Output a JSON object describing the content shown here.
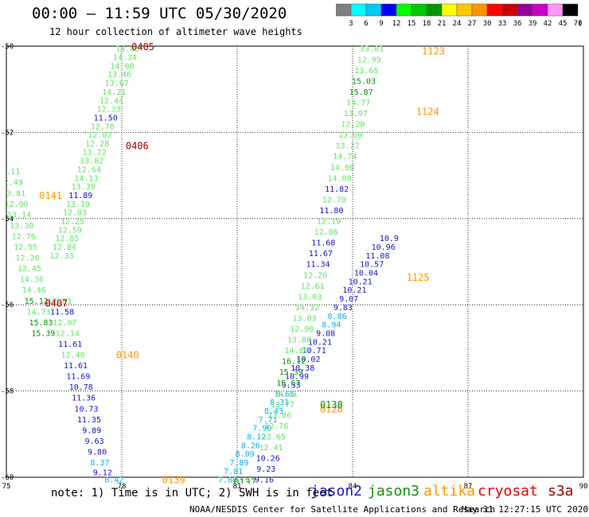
{
  "header": {
    "title": "00:00 – 11:59 UTC 05/30/2020",
    "subtitle": "12 hour collection of altimeter wave heights"
  },
  "colorbar": {
    "colors": [
      "#808080",
      "#00ffff",
      "#00c8ff",
      "#0000ff",
      "#00ff00",
      "#00c800",
      "#009600",
      "#ffff00",
      "#ffc800",
      "#ff9600",
      "#ff0000",
      "#c80000",
      "#960096",
      "#c800c8",
      "#ff96ff",
      "#000000"
    ],
    "ticks": [
      "3",
      "6",
      "9",
      "12",
      "15",
      "18",
      "21",
      "24",
      "27",
      "30",
      "33",
      "36",
      "39",
      "42",
      "45",
      "70",
      "(ft)"
    ]
  },
  "footer": {
    "note": "note: 1) Time is in UTC; 2) SWH is in feet",
    "satellites": [
      {
        "name": "jason2",
        "color": "#1414d2"
      },
      {
        "name": "jason3",
        "color": "#109010"
      },
      {
        "name": "altika",
        "color": "#ff9600"
      },
      {
        "name": "cryosat",
        "color": "#e60000"
      },
      {
        "name": "s3a",
        "color": "#a00000"
      }
    ],
    "credit": "NOAA/NESDIS Center for Satellite Applications and Research",
    "date": "May 31 12:27:15 UTC 2020"
  },
  "chart_data": {
    "type": "scatter",
    "title": "00:00 – 11:59 UTC 05/30/2020",
    "xlim": [
      75,
      90
    ],
    "ylim": [
      -60,
      -50
    ],
    "x_ticks": [
      "75",
      "78",
      "81",
      "84",
      "87",
      "90"
    ],
    "y_ticks": [
      "-50",
      "-52",
      "-54",
      "-56",
      "-58",
      "-60"
    ],
    "grid": true,
    "wave_heights": [
      {
        "lon": 78.15,
        "lat": -50.05,
        "v": "14.85",
        "c": "#5fe65f"
      },
      {
        "lon": 78.08,
        "lat": -50.25,
        "v": "14.34",
        "c": "#5fe65f"
      },
      {
        "lon": 78.01,
        "lat": -50.45,
        "v": "14.08",
        "c": "#5fe65f"
      },
      {
        "lon": 77.94,
        "lat": -50.65,
        "v": "13.46",
        "c": "#5fe65f"
      },
      {
        "lon": 77.87,
        "lat": -50.85,
        "v": "13.67",
        "c": "#5fe65f"
      },
      {
        "lon": 77.8,
        "lat": -51.05,
        "v": "14.21",
        "c": "#5fe65f"
      },
      {
        "lon": 77.73,
        "lat": -51.25,
        "v": "12.44",
        "c": "#5fe65f"
      },
      {
        "lon": 77.66,
        "lat": -51.45,
        "v": "12.33",
        "c": "#5fe65f"
      },
      {
        "lon": 77.58,
        "lat": -51.65,
        "v": "11.50",
        "c": "#1414d2"
      },
      {
        "lon": 77.5,
        "lat": -51.85,
        "v": "12.78",
        "c": "#5fe65f"
      },
      {
        "lon": 77.43,
        "lat": -52.05,
        "v": "12.02",
        "c": "#5fe65f"
      },
      {
        "lon": 77.36,
        "lat": -52.25,
        "v": "12.28",
        "c": "#5fe65f"
      },
      {
        "lon": 77.29,
        "lat": -52.45,
        "v": "13.72",
        "c": "#5fe65f"
      },
      {
        "lon": 77.22,
        "lat": -52.65,
        "v": "13.82",
        "c": "#5fe65f"
      },
      {
        "lon": 77.15,
        "lat": -52.85,
        "v": "12.64",
        "c": "#5fe65f"
      },
      {
        "lon": 77.08,
        "lat": -53.05,
        "v": "14.13",
        "c": "#5fe65f"
      },
      {
        "lon": 77.0,
        "lat": -53.25,
        "v": "13.39",
        "c": "#5fe65f"
      },
      {
        "lon": 76.93,
        "lat": -53.45,
        "v": "11.89",
        "c": "#1414d2"
      },
      {
        "lon": 76.86,
        "lat": -53.65,
        "v": "13.19",
        "c": "#5fe65f"
      },
      {
        "lon": 76.78,
        "lat": -53.85,
        "v": "12.83",
        "c": "#5fe65f"
      },
      {
        "lon": 76.72,
        "lat": -54.05,
        "v": "12.25",
        "c": "#5fe65f"
      },
      {
        "lon": 76.65,
        "lat": -54.25,
        "v": "12.59",
        "c": "#5fe65f"
      },
      {
        "lon": 76.58,
        "lat": -54.45,
        "v": "12.85",
        "c": "#5fe65f"
      },
      {
        "lon": 76.51,
        "lat": -54.65,
        "v": "12.84",
        "c": "#5fe65f"
      },
      {
        "lon": 76.44,
        "lat": -54.85,
        "v": "12.33",
        "c": "#5fe65f"
      },
      {
        "lon": 75.05,
        "lat": -52.9,
        "v": "12.11",
        "c": "#5fe65f"
      },
      {
        "lon": 75.12,
        "lat": -53.15,
        "v": "12.49",
        "c": "#5fe65f"
      },
      {
        "lon": 75.19,
        "lat": -53.4,
        "v": "13.81",
        "c": "#5fe65f"
      },
      {
        "lon": 75.26,
        "lat": -53.65,
        "v": "12.90",
        "c": "#5fe65f"
      },
      {
        "lon": 75.33,
        "lat": -53.9,
        "v": "13.14",
        "c": "#5fe65f"
      },
      {
        "lon": 75.4,
        "lat": -54.15,
        "v": "13.30",
        "c": "#5fe65f"
      },
      {
        "lon": 75.45,
        "lat": -54.4,
        "v": "12.76",
        "c": "#5fe65f"
      },
      {
        "lon": 75.5,
        "lat": -54.65,
        "v": "12.55",
        "c": "#5fe65f"
      },
      {
        "lon": 75.55,
        "lat": -54.9,
        "v": "12.28",
        "c": "#5fe65f"
      },
      {
        "lon": 75.6,
        "lat": -55.15,
        "v": "12.45",
        "c": "#5fe65f"
      },
      {
        "lon": 75.66,
        "lat": -55.4,
        "v": "14.36",
        "c": "#5fe65f"
      },
      {
        "lon": 75.72,
        "lat": -55.65,
        "v": "14.46",
        "c": "#5fe65f"
      },
      {
        "lon": 75.78,
        "lat": -55.9,
        "v": "15.12",
        "c": "#009600"
      },
      {
        "lon": 75.84,
        "lat": -56.15,
        "v": "14.73",
        "c": "#5fe65f"
      },
      {
        "lon": 75.9,
        "lat": -56.4,
        "v": "15.83",
        "c": "#009600"
      },
      {
        "lon": 75.96,
        "lat": -56.65,
        "v": "15.39",
        "c": "#009600"
      },
      {
        "lon": 76.38,
        "lat": -55.9,
        "v": "12.83",
        "c": "#5fe65f"
      },
      {
        "lon": 76.45,
        "lat": -56.15,
        "v": "11.58",
        "c": "#1414d2"
      },
      {
        "lon": 76.52,
        "lat": -56.4,
        "v": "12.07",
        "c": "#5fe65f"
      },
      {
        "lon": 76.59,
        "lat": -56.65,
        "v": "12.14",
        "c": "#5fe65f"
      },
      {
        "lon": 76.66,
        "lat": -56.9,
        "v": "11.61",
        "c": "#1414d2"
      },
      {
        "lon": 76.73,
        "lat": -57.15,
        "v": "12.40",
        "c": "#5fe65f"
      },
      {
        "lon": 76.8,
        "lat": -57.4,
        "v": "11.61",
        "c": "#1414d2"
      },
      {
        "lon": 76.87,
        "lat": -57.65,
        "v": "11.69",
        "c": "#1414d2"
      },
      {
        "lon": 76.94,
        "lat": -57.9,
        "v": "10.78",
        "c": "#1414d2"
      },
      {
        "lon": 77.01,
        "lat": -58.15,
        "v": "11.36",
        "c": "#1414d2"
      },
      {
        "lon": 77.08,
        "lat": -58.4,
        "v": "10.73",
        "c": "#1414d2"
      },
      {
        "lon": 77.15,
        "lat": -58.65,
        "v": "11.35",
        "c": "#1414d2"
      },
      {
        "lon": 77.22,
        "lat": -58.9,
        "v": "9.89",
        "c": "#1414d2"
      },
      {
        "lon": 77.29,
        "lat": -59.15,
        "v": "9.63",
        "c": "#1414d2"
      },
      {
        "lon": 77.36,
        "lat": -59.4,
        "v": "9.80",
        "c": "#1414d2"
      },
      {
        "lon": 77.43,
        "lat": -59.65,
        "v": "8.37",
        "c": "#00b4ff"
      },
      {
        "lon": 77.5,
        "lat": -59.88,
        "v": "9.12",
        "c": "#1414d2"
      },
      {
        "lon": 77.8,
        "lat": -60.05,
        "v": "8.42",
        "c": "#00b4ff"
      },
      {
        "lon": 80.75,
        "lat": -60.05,
        "v": "7.80",
        "c": "#00b4ff"
      },
      {
        "lon": 80.9,
        "lat": -59.85,
        "v": "7.81",
        "c": "#00b4ff"
      },
      {
        "lon": 81.05,
        "lat": -59.65,
        "v": "7.89",
        "c": "#00b4ff"
      },
      {
        "lon": 81.2,
        "lat": -59.45,
        "v": "8.09",
        "c": "#00b4ff"
      },
      {
        "lon": 81.35,
        "lat": -59.25,
        "v": "8.26",
        "c": "#00b4ff"
      },
      {
        "lon": 81.5,
        "lat": -59.05,
        "v": "8.12",
        "c": "#00b4ff"
      },
      {
        "lon": 81.65,
        "lat": -58.85,
        "v": "7.96",
        "c": "#00b4ff"
      },
      {
        "lon": 81.8,
        "lat": -58.65,
        "v": "7.71",
        "c": "#00b4ff"
      },
      {
        "lon": 81.95,
        "lat": -58.45,
        "v": "8.43",
        "c": "#00b4ff"
      },
      {
        "lon": 82.1,
        "lat": -58.25,
        "v": "8.31",
        "c": "#00b4ff"
      },
      {
        "lon": 82.25,
        "lat": -58.05,
        "v": "8.65",
        "c": "#00b4ff"
      },
      {
        "lon": 82.4,
        "lat": -57.85,
        "v": "9.33",
        "c": "#1414d2"
      },
      {
        "lon": 82.55,
        "lat": -57.65,
        "v": "10.99",
        "c": "#1414d2"
      },
      {
        "lon": 82.7,
        "lat": -57.45,
        "v": "10.38",
        "c": "#1414d2"
      },
      {
        "lon": 82.85,
        "lat": -57.25,
        "v": "10.02",
        "c": "#1414d2"
      },
      {
        "lon": 83.0,
        "lat": -57.05,
        "v": "10.71",
        "c": "#1414d2"
      },
      {
        "lon": 83.15,
        "lat": -56.85,
        "v": "10.21",
        "c": "#1414d2"
      },
      {
        "lon": 83.3,
        "lat": -56.65,
        "v": "9.08",
        "c": "#1414d2"
      },
      {
        "lon": 83.45,
        "lat": -56.45,
        "v": "8.94",
        "c": "#00b4ff"
      },
      {
        "lon": 83.6,
        "lat": -56.25,
        "v": "8.86",
        "c": "#00b4ff"
      },
      {
        "lon": 83.75,
        "lat": -56.05,
        "v": "9.83",
        "c": "#1414d2"
      },
      {
        "lon": 83.9,
        "lat": -55.85,
        "v": "9.07",
        "c": "#1414d2"
      },
      {
        "lon": 84.05,
        "lat": -55.65,
        "v": "10.21",
        "c": "#1414d2"
      },
      {
        "lon": 84.2,
        "lat": -55.45,
        "v": "10.21",
        "c": "#1414d2"
      },
      {
        "lon": 84.35,
        "lat": -55.25,
        "v": "10.04",
        "c": "#1414d2"
      },
      {
        "lon": 84.5,
        "lat": -55.05,
        "v": "10.57",
        "c": "#1414d2"
      },
      {
        "lon": 84.65,
        "lat": -54.85,
        "v": "11.08",
        "c": "#1414d2"
      },
      {
        "lon": 84.8,
        "lat": -54.65,
        "v": "10.96",
        "c": "#1414d2"
      },
      {
        "lon": 84.95,
        "lat": -54.45,
        "v": "10.9",
        "c": "#1414d2"
      },
      {
        "lon": 81.7,
        "lat": -60.05,
        "v": "9.16",
        "c": "#1414d2"
      },
      {
        "lon": 81.75,
        "lat": -59.8,
        "v": "9.23",
        "c": "#1414d2"
      },
      {
        "lon": 81.8,
        "lat": -59.55,
        "v": "10.26",
        "c": "#1414d2"
      },
      {
        "lon": 81.88,
        "lat": -59.3,
        "v": "12.41",
        "c": "#5fe65f"
      },
      {
        "lon": 81.95,
        "lat": -59.05,
        "v": "12.65",
        "c": "#5fe65f"
      },
      {
        "lon": 82.02,
        "lat": -58.8,
        "v": "12.76",
        "c": "#5fe65f"
      },
      {
        "lon": 82.1,
        "lat": -58.55,
        "v": "13.06",
        "c": "#5fe65f"
      },
      {
        "lon": 82.18,
        "lat": -58.3,
        "v": "13.77",
        "c": "#5fe65f"
      },
      {
        "lon": 82.26,
        "lat": -58.05,
        "v": "14.31",
        "c": "#5fe65f"
      },
      {
        "lon": 82.33,
        "lat": -57.8,
        "v": "15.67",
        "c": "#009600"
      },
      {
        "lon": 82.4,
        "lat": -57.55,
        "v": "15.39",
        "c": "#009600"
      },
      {
        "lon": 82.47,
        "lat": -57.3,
        "v": "16.12",
        "c": "#009600"
      },
      {
        "lon": 82.54,
        "lat": -57.05,
        "v": "14.89",
        "c": "#5fe65f"
      },
      {
        "lon": 82.61,
        "lat": -56.8,
        "v": "13.88",
        "c": "#5fe65f"
      },
      {
        "lon": 82.68,
        "lat": -56.55,
        "v": "12.90",
        "c": "#5fe65f"
      },
      {
        "lon": 82.75,
        "lat": -56.3,
        "v": "13.03",
        "c": "#5fe65f"
      },
      {
        "lon": 82.82,
        "lat": -56.05,
        "v": "14.32",
        "c": "#5fe65f"
      },
      {
        "lon": 82.89,
        "lat": -55.8,
        "v": "13.03",
        "c": "#5fe65f"
      },
      {
        "lon": 82.96,
        "lat": -55.55,
        "v": "12.61",
        "c": "#5fe65f"
      },
      {
        "lon": 83.03,
        "lat": -55.3,
        "v": "12.20",
        "c": "#5fe65f"
      },
      {
        "lon": 83.1,
        "lat": -55.05,
        "v": "11.34",
        "c": "#1414d2"
      },
      {
        "lon": 83.17,
        "lat": -54.8,
        "v": "11.67",
        "c": "#1414d2"
      },
      {
        "lon": 83.24,
        "lat": -54.55,
        "v": "11.68",
        "c": "#1414d2"
      },
      {
        "lon": 83.31,
        "lat": -54.3,
        "v": "12.06",
        "c": "#5fe65f"
      },
      {
        "lon": 83.38,
        "lat": -54.05,
        "v": "12.19",
        "c": "#5fe65f"
      },
      {
        "lon": 83.45,
        "lat": -53.8,
        "v": "11.80",
        "c": "#1414d2"
      },
      {
        "lon": 83.52,
        "lat": -53.55,
        "v": "12.70",
        "c": "#5fe65f"
      },
      {
        "lon": 83.59,
        "lat": -53.3,
        "v": "11.82",
        "c": "#1414d2"
      },
      {
        "lon": 83.66,
        "lat": -53.05,
        "v": "14.08",
        "c": "#5fe65f"
      },
      {
        "lon": 83.73,
        "lat": -52.8,
        "v": "14.06",
        "c": "#5fe65f"
      },
      {
        "lon": 83.8,
        "lat": -52.55,
        "v": "14.74",
        "c": "#5fe65f"
      },
      {
        "lon": 83.87,
        "lat": -52.3,
        "v": "13.27",
        "c": "#5fe65f"
      },
      {
        "lon": 83.94,
        "lat": -52.05,
        "v": "13.00",
        "c": "#5fe65f"
      },
      {
        "lon": 84.01,
        "lat": -51.8,
        "v": "12.20",
        "c": "#5fe65f"
      },
      {
        "lon": 84.08,
        "lat": -51.55,
        "v": "13.97",
        "c": "#5fe65f"
      },
      {
        "lon": 84.15,
        "lat": -51.3,
        "v": "14.77",
        "c": "#5fe65f"
      },
      {
        "lon": 84.22,
        "lat": -51.05,
        "v": "15.87",
        "c": "#009600"
      },
      {
        "lon": 84.29,
        "lat": -50.8,
        "v": "15.03",
        "c": "#009600"
      },
      {
        "lon": 84.36,
        "lat": -50.55,
        "v": "13.65",
        "c": "#5fe65f"
      },
      {
        "lon": 84.43,
        "lat": -50.3,
        "v": "12.99",
        "c": "#5fe65f"
      },
      {
        "lon": 84.5,
        "lat": -50.05,
        "v": "13.81",
        "c": "#5fe65f"
      }
    ],
    "time_labels": [
      {
        "lon": 78.55,
        "lat": -50.0,
        "t": "0405",
        "c": "#a00000"
      },
      {
        "lon": 78.4,
        "lat": -52.3,
        "t": "0406",
        "c": "#a00000"
      },
      {
        "lon": 76.15,
        "lat": -53.45,
        "t": "0141",
        "c": "#ff9600"
      },
      {
        "lon": 76.3,
        "lat": -55.95,
        "t": "0407",
        "c": "#a00000"
      },
      {
        "lon": 78.15,
        "lat": -57.15,
        "t": "0140",
        "c": "#ff9600"
      },
      {
        "lon": 79.35,
        "lat": -60.05,
        "t": "0139",
        "c": "#ff9600"
      },
      {
        "lon": 81.2,
        "lat": -60.1,
        "t": "0137",
        "c": "#109010"
      },
      {
        "lon": 83.45,
        "lat": -58.4,
        "t": "0126",
        "c": "#ff9600"
      },
      {
        "lon": 83.45,
        "lat": -58.3,
        "t": "0138",
        "c": "#109010"
      },
      {
        "lon": 85.7,
        "lat": -55.35,
        "t": "1125",
        "c": "#ff9600"
      },
      {
        "lon": 85.95,
        "lat": -51.5,
        "t": "1124",
        "c": "#ff9600"
      },
      {
        "lon": 86.1,
        "lat": -50.1,
        "t": "1123",
        "c": "#ff9600"
      }
    ]
  }
}
